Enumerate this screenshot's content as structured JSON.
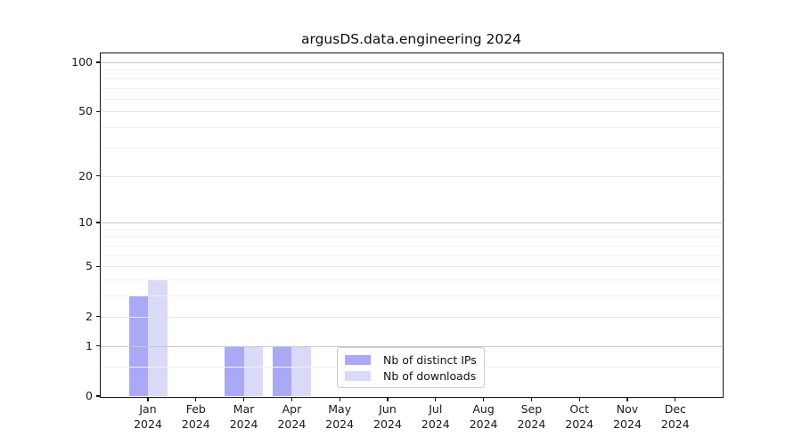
{
  "chart_data": {
    "type": "bar",
    "title": "argusDS.data.engineering 2024",
    "x_tick_months": [
      "Jan",
      "Feb",
      "Mar",
      "Apr",
      "May",
      "Jun",
      "Jul",
      "Aug",
      "Sep",
      "Oct",
      "Nov",
      "Dec"
    ],
    "x_tick_year": "2024",
    "series": [
      {
        "name": "Nb of distinct IPs",
        "color": "#a9a9f6",
        "values": [
          3,
          0,
          1,
          1,
          0,
          0,
          0,
          0,
          0,
          0,
          0,
          0
        ]
      },
      {
        "name": "Nb of downloads",
        "color": "#d9d9f8",
        "values": [
          4,
          0,
          1,
          1,
          0,
          0,
          0,
          0,
          0,
          0,
          0,
          0
        ]
      }
    ],
    "yscale": "log1p",
    "ylim": [
      0,
      100
    ],
    "yticks": [
      0,
      1,
      2,
      5,
      10,
      20,
      50,
      100
    ],
    "yticks_minor": [
      0.5,
      3,
      4,
      6,
      7,
      8,
      9,
      30,
      40,
      60,
      70,
      80,
      90
    ],
    "grid": true,
    "legend_position": "lower-center"
  }
}
